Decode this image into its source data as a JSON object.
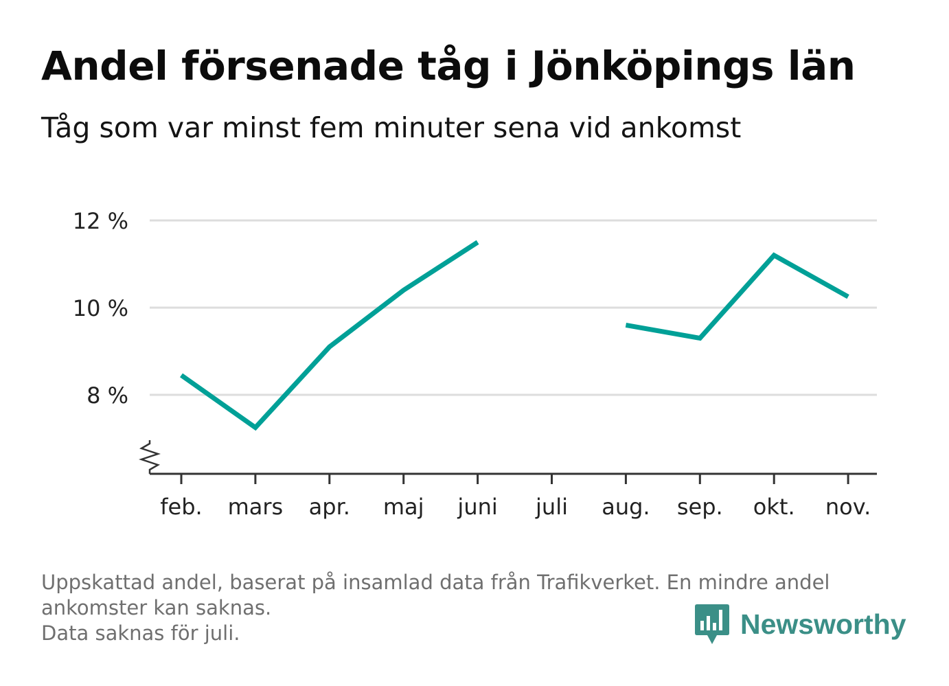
{
  "header": {
    "title": "Andel försenade tåg i Jönköpings län",
    "subtitle": "Tåg som var minst fem minuter sena vid ankomst"
  },
  "chart_data": {
    "type": "line",
    "categories": [
      "feb.",
      "mars",
      "apr.",
      "maj",
      "juni",
      "juli",
      "aug.",
      "sep.",
      "okt.",
      "nov."
    ],
    "series": [
      {
        "values": [
          8.45,
          7.25,
          9.1,
          10.4,
          11.5,
          null,
          9.6,
          9.3,
          11.2,
          10.25
        ]
      }
    ],
    "y_ticks": [
      8,
      10,
      12
    ],
    "y_tick_labels": [
      "8 %",
      "10 %",
      "12 %"
    ],
    "ylim": [
      6.2,
      12.0
    ],
    "axis_break": true,
    "grid": true,
    "line_color": "#00a097",
    "grid_color": "#dddddd",
    "axis_color": "#333333"
  },
  "footer": {
    "note_line1": "Uppskattad andel, baserat på insamlad data från Trafikverket. En mindre andel",
    "note_line2": "ankomster kan saknas.",
    "note_line3": "Data saknas för juli.",
    "brand_name": "Newsworthy",
    "brand_icon": "bar-chart-speech-bubble-icon",
    "brand_color": "#3b8f87"
  }
}
